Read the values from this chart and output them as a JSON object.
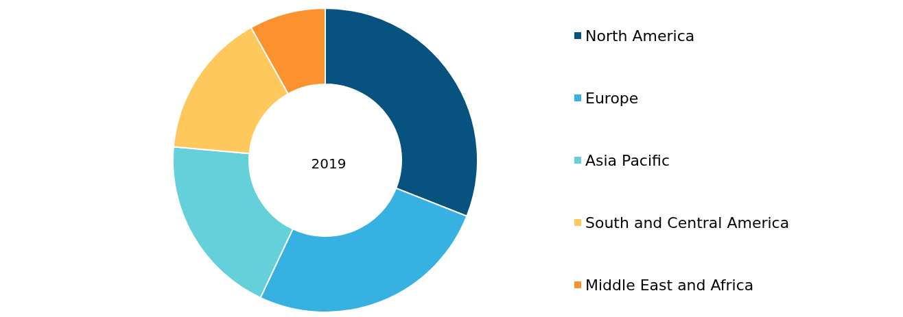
{
  "chart_data": {
    "type": "donut",
    "title": "2019",
    "categories": [
      "North America",
      "Europe",
      "Asia Pacific",
      "South and Central America",
      "Middle East and Africa"
    ],
    "values": [
      31,
      26,
      19.4,
      15.5,
      8.1
    ],
    "colors": [
      "#08527f",
      "#36b1e2",
      "#63d0da",
      "#ffc85c",
      "#fb922e"
    ],
    "legend": "right"
  }
}
